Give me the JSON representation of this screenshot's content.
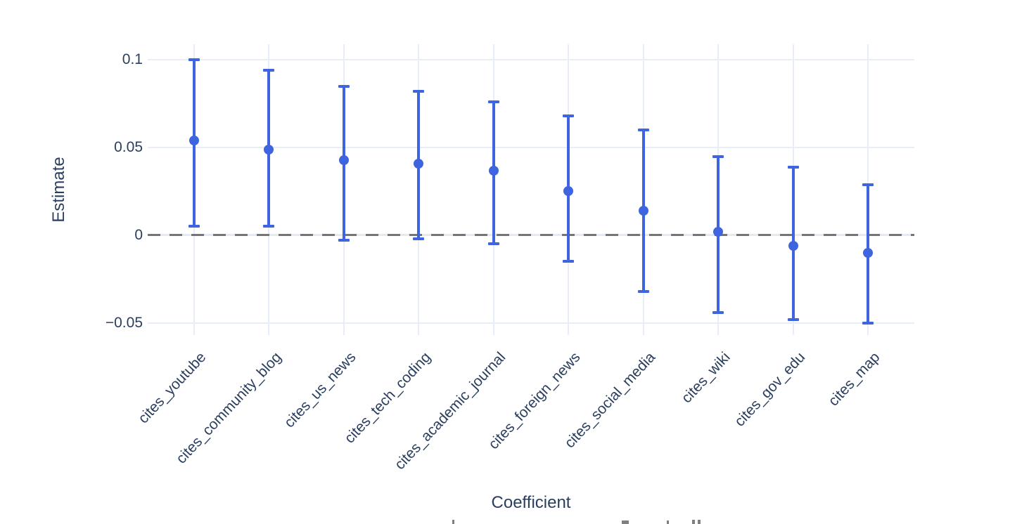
{
  "chart_data": {
    "type": "scatter",
    "subtype": "coefficient-plot-with-error-bars",
    "title": "",
    "xlabel": "Coefficient",
    "ylabel": "Estimate",
    "categories": [
      "cites_youtube",
      "cites_community_blog",
      "cites_us_news",
      "cites_tech_coding",
      "cites_academic_journal",
      "cites_foreign_news",
      "cites_social_media",
      "cites_wiki",
      "cites_gov_edu",
      "cites_map"
    ],
    "series": [
      {
        "name": "estimate",
        "values": [
          0.054,
          0.049,
          0.043,
          0.041,
          0.037,
          0.025,
          0.014,
          0.002,
          -0.006,
          -0.01
        ],
        "ci_low": [
          0.005,
          0.005,
          -0.003,
          -0.002,
          -0.005,
          -0.015,
          -0.032,
          -0.044,
          -0.048,
          -0.05
        ],
        "ci_high": [
          0.1,
          0.094,
          0.085,
          0.082,
          0.076,
          0.068,
          0.06,
          0.045,
          0.039,
          0.029
        ]
      }
    ],
    "ylim": [
      -0.057,
      0.109
    ],
    "yticks": {
      "values": [
        0.1,
        0.05,
        0,
        -0.05
      ],
      "labels": [
        "0.1",
        "0.05",
        "0",
        "−0.05"
      ]
    },
    "reference_line": {
      "y": 0,
      "style": "dashed"
    },
    "grid": true,
    "legend": false,
    "colors": {
      "marker": "#3f64df",
      "text": "#2a3f5f",
      "grid": "#e8eef7",
      "zero_gridline": "#e3eaf4",
      "dashed_reference": "#757575",
      "background": "#ffffff"
    }
  }
}
